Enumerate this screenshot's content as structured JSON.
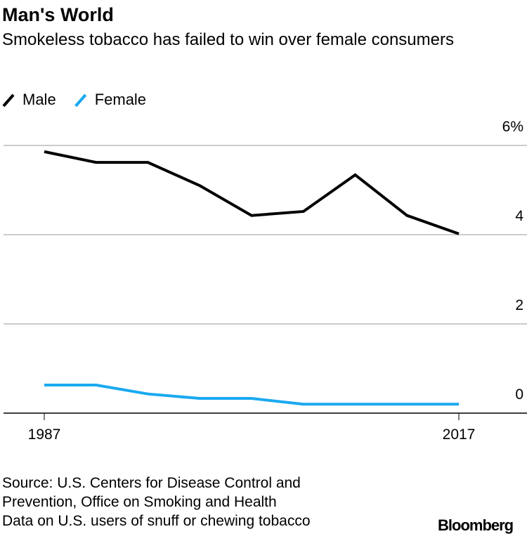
{
  "chart_data": {
    "type": "line",
    "title": "Man's World",
    "subtitle": "Smokeless tobacco has failed to win over female consumers",
    "categories": [
      "1987",
      null,
      null,
      null,
      null,
      null,
      null,
      null,
      "2017"
    ],
    "series": [
      {
        "name": "Male",
        "color": "#000000",
        "values": [
          5.86,
          5.62,
          5.62,
          5.1,
          4.43,
          4.52,
          5.34,
          4.43,
          4.02
        ]
      },
      {
        "name": "Female",
        "color": "#1aa9f0",
        "values": [
          0.63,
          0.63,
          0.43,
          0.33,
          0.33,
          0.2,
          0.2,
          0.2,
          0.2
        ]
      }
    ],
    "ylim": [
      0,
      6
    ],
    "yticks": [
      0,
      2,
      4,
      {
        "value": 6,
        "label": "6%"
      }
    ],
    "grid": true,
    "source": [
      "Source: U.S. Centers for Disease Control and",
      "Prevention, Office on Smoking and Health",
      "Data on U.S. users of snuff or chewing tobacco"
    ],
    "branding": "Bloomberg"
  }
}
